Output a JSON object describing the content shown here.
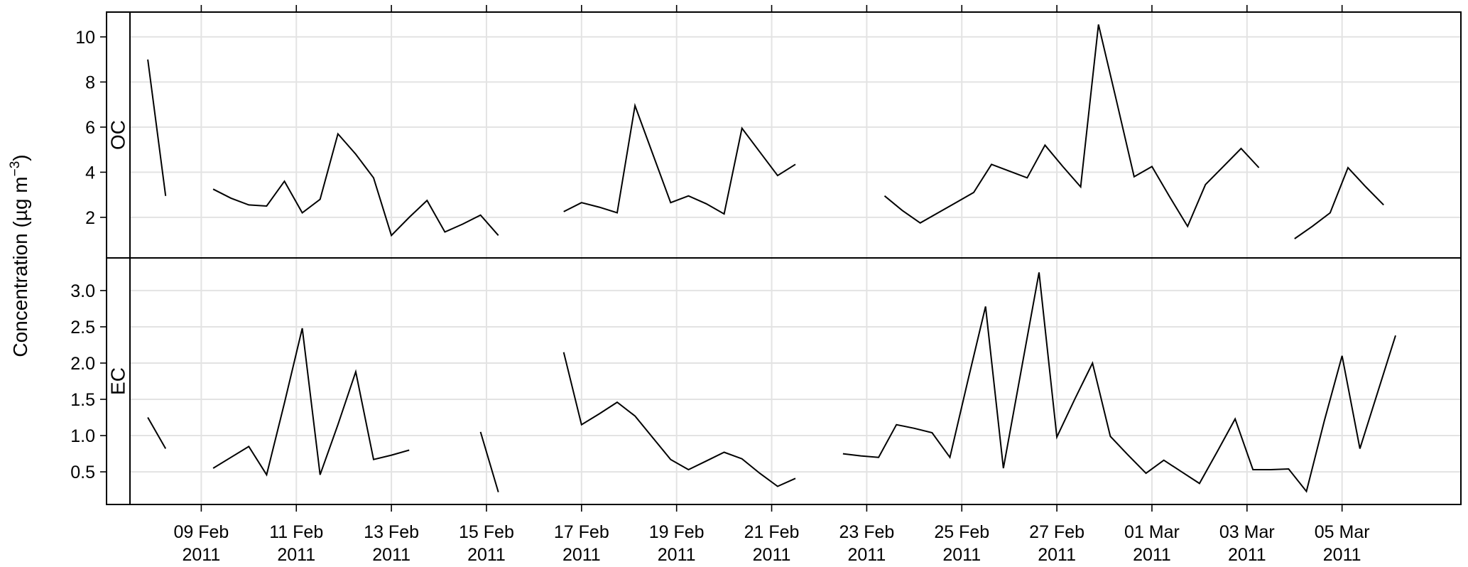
{
  "chart_data": {
    "type": "line",
    "ylabel": "Concentration (µg m",
    "ylabel_superscript": "−3",
    "ylabel_close": ")",
    "x_axis_type": "date",
    "xlim": [
      "2011-02-07T12:00",
      "2011-03-07T12:00"
    ],
    "x_ticks": [
      {
        "date": "2011-02-09",
        "day": "09 Feb",
        "year": "2011"
      },
      {
        "date": "2011-02-11",
        "day": "11 Feb",
        "year": "2011"
      },
      {
        "date": "2011-02-13",
        "day": "13 Feb",
        "year": "2011"
      },
      {
        "date": "2011-02-15",
        "day": "15 Feb",
        "year": "2011"
      },
      {
        "date": "2011-02-17",
        "day": "17 Feb",
        "year": "2011"
      },
      {
        "date": "2011-02-19",
        "day": "19 Feb",
        "year": "2011"
      },
      {
        "date": "2011-02-21",
        "day": "21 Feb",
        "year": "2011"
      },
      {
        "date": "2011-02-23",
        "day": "23 Feb",
        "year": "2011"
      },
      {
        "date": "2011-02-25",
        "day": "25 Feb",
        "year": "2011"
      },
      {
        "date": "2011-02-27",
        "day": "27 Feb",
        "year": "2011"
      },
      {
        "date": "2011-03-01",
        "day": "01 Mar",
        "year": "2011"
      },
      {
        "date": "2011-03-03",
        "day": "03 Mar",
        "year": "2011"
      },
      {
        "date": "2011-03-05",
        "day": "05 Mar",
        "year": "2011"
      }
    ],
    "grid": true,
    "line_color": "#000000",
    "panels": [
      {
        "strip": "OC",
        "ylim": [
          0.2,
          11.1
        ],
        "y_ticks": [
          2,
          4,
          6,
          8,
          10
        ],
        "y_tick_labels": [
          "2",
          "4",
          "6",
          "8",
          "10"
        ],
        "segments": [
          [
            [
              "2011-02-07T21:00",
              9.0
            ],
            [
              "2011-02-08T06:00",
              2.95
            ]
          ],
          [
            [
              "2011-02-09T06:00",
              3.25
            ],
            [
              "2011-02-09T15:00",
              2.85
            ],
            [
              "2011-02-10T00:00",
              2.55
            ],
            [
              "2011-02-10T09:00",
              2.5
            ],
            [
              "2011-02-10T18:00",
              3.6
            ],
            [
              "2011-02-11T03:00",
              2.2
            ],
            [
              "2011-02-11T12:00",
              2.8
            ],
            [
              "2011-02-11T21:00",
              5.7
            ],
            [
              "2011-02-12T06:00",
              4.8
            ],
            [
              "2011-02-12T15:00",
              3.75
            ],
            [
              "2011-02-13T00:00",
              1.2
            ],
            [
              "2011-02-13T09:00",
              2.0
            ],
            [
              "2011-02-13T18:00",
              2.75
            ],
            [
              "2011-02-14T03:00",
              1.35
            ],
            [
              "2011-02-14T12:00",
              1.7
            ],
            [
              "2011-02-14T21:00",
              2.1
            ],
            [
              "2011-02-15T06:00",
              1.2
            ]
          ],
          [
            [
              "2011-02-16T15:00",
              2.25
            ],
            [
              "2011-02-17T00:00",
              2.65
            ],
            [
              "2011-02-17T09:00",
              2.45
            ],
            [
              "2011-02-17T18:00",
              2.2
            ],
            [
              "2011-02-18T03:00",
              6.95
            ],
            [
              "2011-02-18T12:00",
              4.8
            ],
            [
              "2011-02-18T21:00",
              2.65
            ],
            [
              "2011-02-19T06:00",
              2.95
            ],
            [
              "2011-02-19T15:00",
              2.6
            ],
            [
              "2011-02-20T00:00",
              2.15
            ],
            [
              "2011-02-20T09:00",
              5.95
            ],
            [
              "2011-02-20T18:00",
              4.9
            ],
            [
              "2011-02-21T03:00",
              3.85
            ],
            [
              "2011-02-21T12:00",
              4.35
            ]
          ],
          [
            [
              "2011-02-23T09:00",
              2.95
            ],
            [
              "2011-02-23T18:00",
              2.3
            ],
            [
              "2011-02-24T03:00",
              1.75
            ],
            [
              "2011-02-24T12:00",
              2.2
            ],
            [
              "2011-02-24T21:00",
              2.65
            ],
            [
              "2011-02-25T06:00",
              3.1
            ],
            [
              "2011-02-25T15:00",
              4.35
            ],
            [
              "2011-02-26T00:00",
              4.05
            ],
            [
              "2011-02-26T09:00",
              3.75
            ],
            [
              "2011-02-26T18:00",
              5.2
            ],
            [
              "2011-02-27T03:00",
              4.25
            ],
            [
              "2011-02-27T12:00",
              3.35
            ],
            [
              "2011-02-27T21:00",
              10.55
            ],
            [
              "2011-02-28T06:00",
              7.2
            ],
            [
              "2011-02-28T15:00",
              3.8
            ],
            [
              "2011-03-01T00:00",
              4.25
            ],
            [
              "2011-03-01T09:00",
              2.9
            ],
            [
              "2011-03-01T18:00",
              1.6
            ],
            [
              "2011-03-02T03:00",
              3.45
            ],
            [
              "2011-03-02T12:00",
              4.25
            ],
            [
              "2011-03-02T21:00",
              5.05
            ],
            [
              "2011-03-03T06:00",
              4.2
            ]
          ],
          [
            [
              "2011-03-04T00:00",
              1.05
            ],
            [
              "2011-03-04T09:00",
              1.6
            ],
            [
              "2011-03-04T18:00",
              2.2
            ],
            [
              "2011-03-05T03:00",
              4.2
            ],
            [
              "2011-03-05T12:00",
              3.35
            ],
            [
              "2011-03-05T21:00",
              2.55
            ]
          ]
        ]
      },
      {
        "strip": "EC",
        "ylim": [
          0.05,
          3.45
        ],
        "y_ticks": [
          0.5,
          1.0,
          1.5,
          2.0,
          2.5,
          3.0
        ],
        "y_tick_labels": [
          "0.5",
          "1.0",
          "1.5",
          "2.0",
          "2.5",
          "3.0"
        ],
        "segments": [
          [
            [
              "2011-02-07T21:00",
              1.25
            ],
            [
              "2011-02-08T06:00",
              0.82
            ]
          ],
          [
            [
              "2011-02-09T06:00",
              0.55
            ],
            [
              "2011-02-09T15:00",
              0.7
            ],
            [
              "2011-02-10T00:00",
              0.85
            ],
            [
              "2011-02-10T09:00",
              0.46
            ],
            [
              "2011-02-10T18:00",
              1.45
            ],
            [
              "2011-02-11T03:00",
              2.48
            ],
            [
              "2011-02-11T12:00",
              0.46
            ],
            [
              "2011-02-11T21:00",
              1.15
            ],
            [
              "2011-02-12T06:00",
              1.88
            ],
            [
              "2011-02-12T15:00",
              0.67
            ],
            [
              "2011-02-13T00:00",
              0.73
            ],
            [
              "2011-02-13T09:00",
              0.8
            ]
          ],
          [
            [
              "2011-02-14T21:00",
              1.05
            ],
            [
              "2011-02-15T06:00",
              0.22
            ]
          ],
          [
            [
              "2011-02-16T15:00",
              2.15
            ],
            [
              "2011-02-17T00:00",
              1.15
            ],
            [
              "2011-02-17T09:00",
              1.3
            ],
            [
              "2011-02-17T18:00",
              1.46
            ],
            [
              "2011-02-18T03:00",
              1.27
            ],
            [
              "2011-02-18T12:00",
              0.97
            ],
            [
              "2011-02-18T21:00",
              0.67
            ],
            [
              "2011-02-19T06:00",
              0.53
            ],
            [
              "2011-02-19T15:00",
              0.65
            ],
            [
              "2011-02-20T00:00",
              0.77
            ],
            [
              "2011-02-20T09:00",
              0.68
            ],
            [
              "2011-02-20T18:00",
              0.48
            ],
            [
              "2011-02-21T03:00",
              0.3
            ],
            [
              "2011-02-21T12:00",
              0.41
            ]
          ],
          [
            [
              "2011-02-22T12:00",
              0.75
            ],
            [
              "2011-02-22T21:00",
              0.72
            ],
            [
              "2011-02-23T06:00",
              0.7
            ],
            [
              "2011-02-23T15:00",
              1.15
            ],
            [
              "2011-02-24T00:00",
              1.1
            ],
            [
              "2011-02-24T09:00",
              1.04
            ],
            [
              "2011-02-24T18:00",
              0.7
            ],
            [
              "2011-02-25T03:00",
              1.75
            ],
            [
              "2011-02-25T12:00",
              2.78
            ],
            [
              "2011-02-25T21:00",
              0.55
            ],
            [
              "2011-02-26T06:00",
              1.9
            ],
            [
              "2011-02-26T15:00",
              3.25
            ],
            [
              "2011-02-27T00:00",
              0.98
            ],
            [
              "2011-02-27T09:00",
              1.5
            ],
            [
              "2011-02-27T18:00",
              2.0
            ],
            [
              "2011-02-28T03:00",
              0.99
            ],
            [
              "2011-02-28T12:00",
              0.73
            ],
            [
              "2011-02-28T21:00",
              0.48
            ],
            [
              "2011-03-01T06:00",
              0.66
            ],
            [
              "2011-03-01T15:00",
              0.5
            ],
            [
              "2011-03-02T00:00",
              0.34
            ],
            [
              "2011-03-02T09:00",
              0.78
            ],
            [
              "2011-03-02T18:00",
              1.23
            ],
            [
              "2011-03-03T03:00",
              0.53
            ],
            [
              "2011-03-03T12:00",
              0.53
            ],
            [
              "2011-03-03T21:00",
              0.54
            ],
            [
              "2011-03-04T06:00",
              0.23
            ],
            [
              "2011-03-04T15:00",
              1.2
            ],
            [
              "2011-03-05T00:00",
              2.1
            ],
            [
              "2011-03-05T09:00",
              0.82
            ],
            [
              "2011-03-05T18:00",
              1.6
            ],
            [
              "2011-03-06T03:00",
              2.38
            ]
          ]
        ]
      }
    ]
  }
}
